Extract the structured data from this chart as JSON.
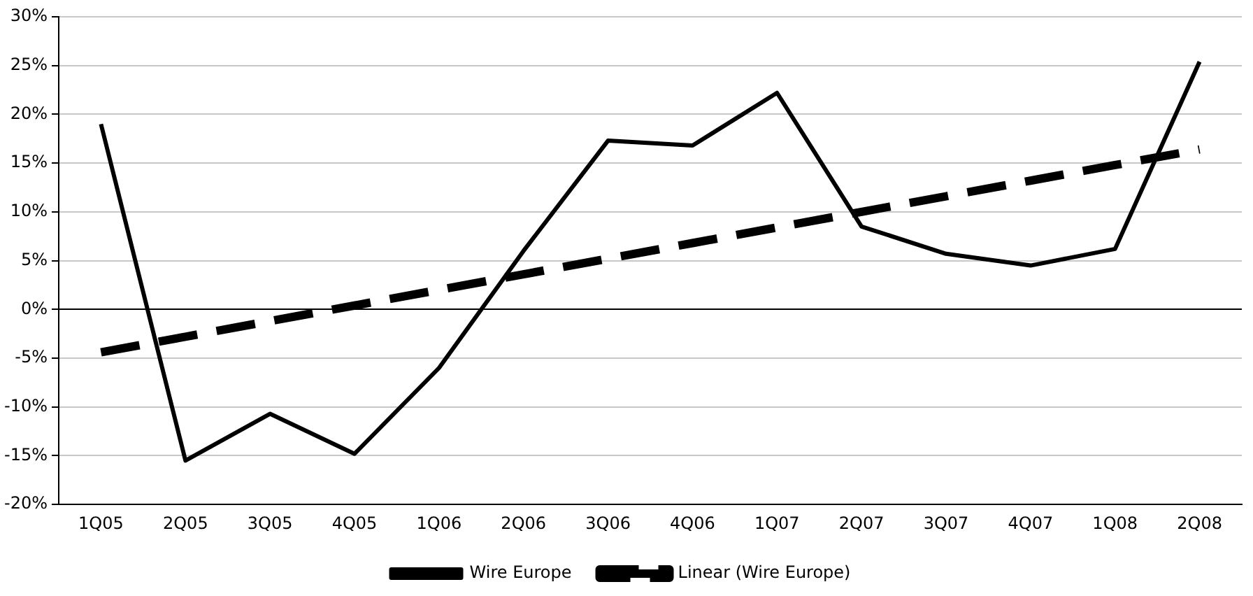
{
  "chart_data": {
    "type": "line",
    "categories": [
      "1Q05",
      "2Q05",
      "3Q05",
      "4Q05",
      "1Q06",
      "2Q06",
      "3Q06",
      "4Q06",
      "1Q07",
      "2Q07",
      "3Q07",
      "4Q07",
      "1Q08",
      "2Q08"
    ],
    "series": [
      {
        "name": "Wire Europe",
        "color": "#000000",
        "line_style": "solid",
        "values": [
          19,
          -15.5,
          -10.7,
          -14.8,
          -6,
          6,
          17.3,
          16.8,
          22.2,
          8.5,
          5.7,
          4.5,
          6.2,
          25.4
        ]
      },
      {
        "name": "Linear (Wire Europe)",
        "color": "#000000",
        "line_style": "dashed",
        "values": [
          -4.4,
          -2.8,
          -1.2,
          0.4,
          2.0,
          3.6,
          5.2,
          6.8,
          8.4,
          10.0,
          11.6,
          13.2,
          14.8,
          16.4
        ]
      }
    ],
    "ylim": [
      -20,
      30
    ],
    "yticks": [
      {
        "value": -20,
        "label": "-20%"
      },
      {
        "value": -15,
        "label": "-15%"
      },
      {
        "value": -10,
        "label": "-10%"
      },
      {
        "value": -5,
        "label": "-5%"
      },
      {
        "value": 0,
        "label": "0%"
      },
      {
        "value": 5,
        "label": "5%"
      },
      {
        "value": 10,
        "label": "10%"
      },
      {
        "value": 15,
        "label": "15%"
      },
      {
        "value": 20,
        "label": "20%"
      },
      {
        "value": 25,
        "label": "25%"
      },
      {
        "value": 30,
        "label": "30%"
      }
    ],
    "grid": "y",
    "legend": "bottom",
    "marker": "none"
  }
}
